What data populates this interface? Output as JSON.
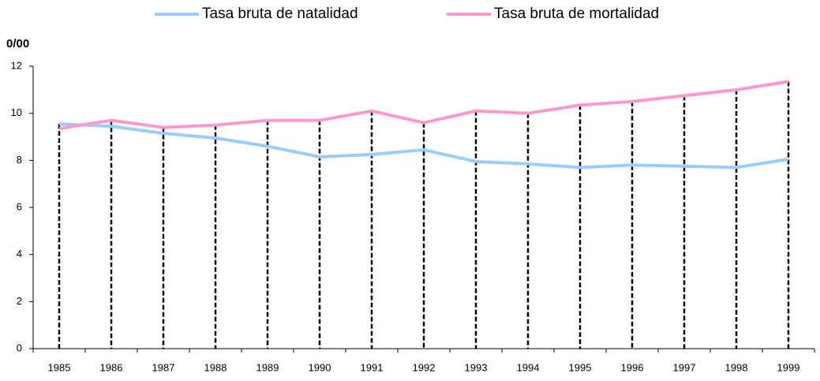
{
  "chart_data": {
    "type": "line",
    "y_label": "0/00",
    "categories": [
      "1985",
      "1986",
      "1987",
      "1988",
      "1989",
      "1990",
      "1991",
      "1992",
      "1993",
      "1994",
      "1995",
      "1996",
      "1997",
      "1998",
      "1999"
    ],
    "series": [
      {
        "name": "Tasa bruta de natalidad",
        "color": "#99ccff",
        "values": [
          9.55,
          9.45,
          9.15,
          8.95,
          8.6,
          8.15,
          8.25,
          8.45,
          7.95,
          7.85,
          7.7,
          7.8,
          7.75,
          7.7,
          8.05
        ]
      },
      {
        "name": "Tasa bruta de mortalidad",
        "color": "#ff99cc",
        "values": [
          9.35,
          9.7,
          9.4,
          9.5,
          9.7,
          9.7,
          10.1,
          9.6,
          10.1,
          10.0,
          10.35,
          10.5,
          10.75,
          11.0,
          11.35
        ]
      }
    ],
    "ylim": [
      0,
      12
    ],
    "yticks": [
      0,
      2,
      4,
      6,
      8,
      10,
      12
    ],
    "drop_lines": true
  }
}
